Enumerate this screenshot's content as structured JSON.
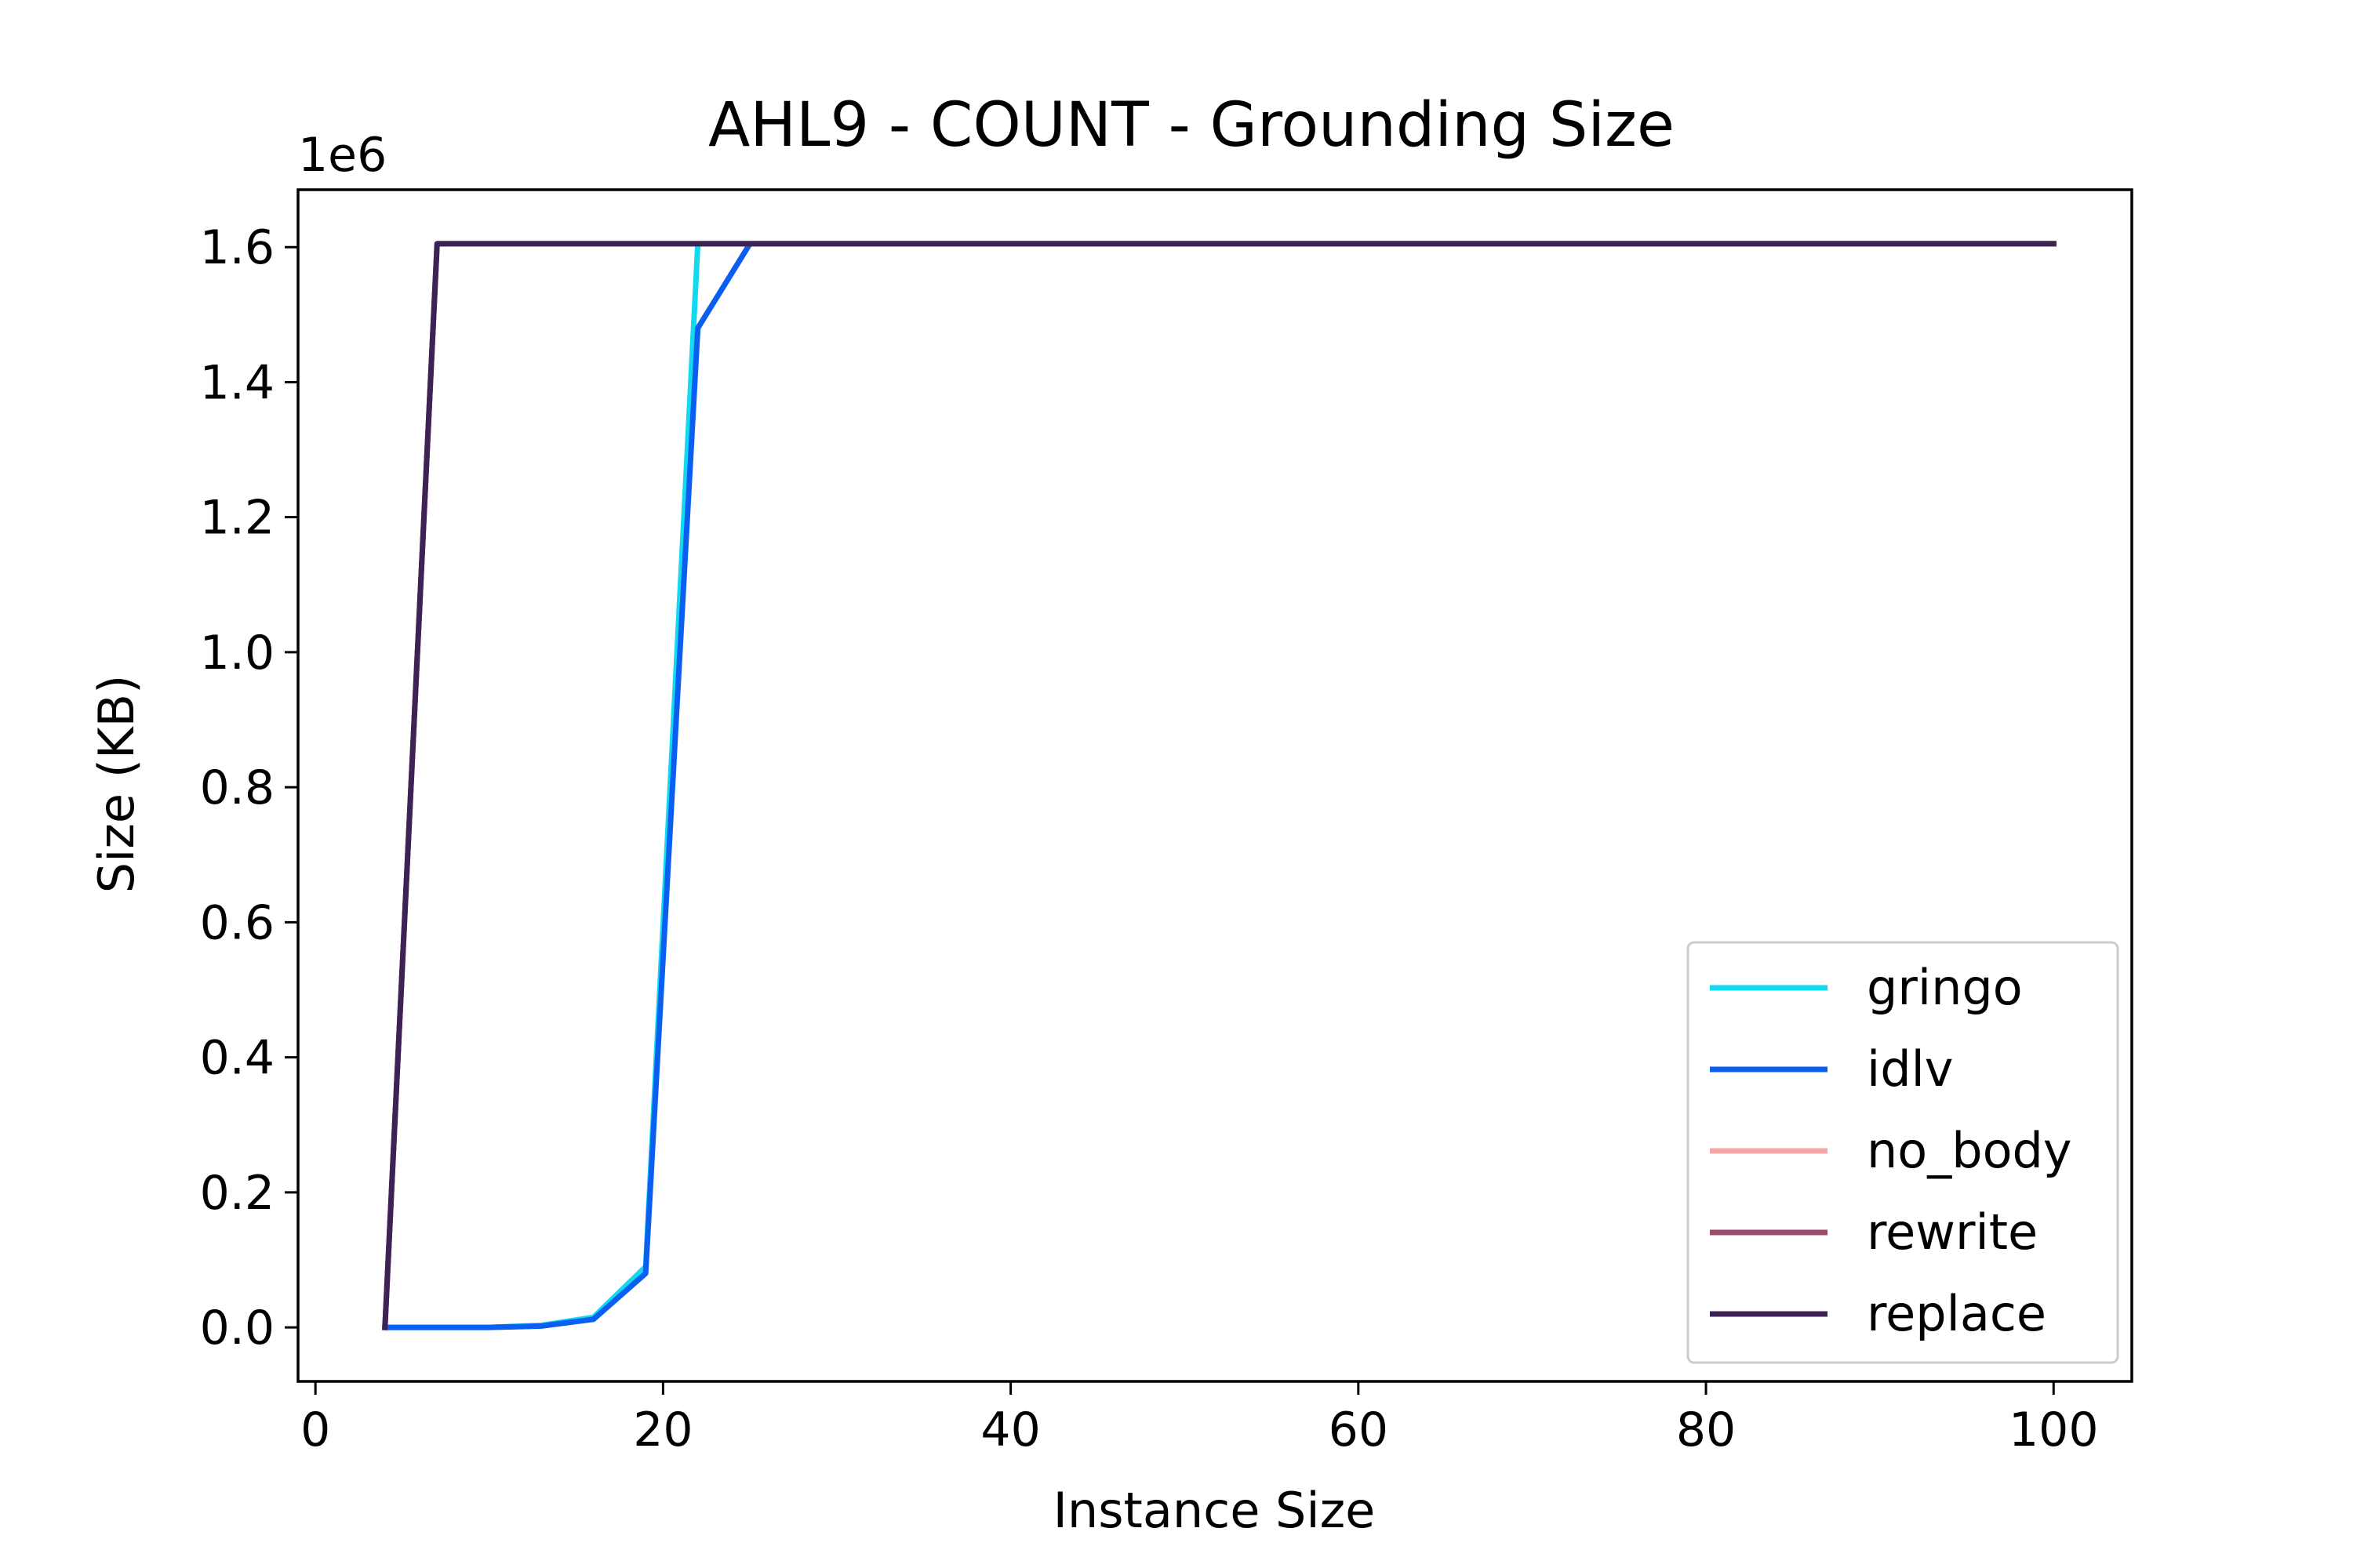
{
  "chart_data": {
    "type": "line",
    "title": "AHL9 - COUNT - Grounding Size",
    "xlabel": "Instance Size",
    "ylabel": "Size (KB)",
    "y_multiplier_label": "1e6",
    "xlim": [
      -1,
      104.5
    ],
    "ylim": [
      -80000,
      1685000
    ],
    "xticks": [
      0,
      20,
      40,
      60,
      80,
      100
    ],
    "xtick_labels": [
      "0",
      "20",
      "40",
      "60",
      "80",
      "100"
    ],
    "yticks": [
      0,
      200000,
      400000,
      600000,
      800000,
      1000000,
      1200000,
      1400000,
      1600000
    ],
    "ytick_labels": [
      "0.0",
      "0.2",
      "0.4",
      "0.6",
      "0.8",
      "1.0",
      "1.2",
      "1.4",
      "1.6"
    ],
    "grid": false,
    "legend_position": "lower-right",
    "series": [
      {
        "name": "gringo",
        "color": "#12d8f0",
        "x": [
          4,
          7,
          10,
          13,
          16,
          19,
          22,
          25,
          28,
          100
        ],
        "y": [
          0,
          0,
          0,
          3000,
          15000,
          90000,
          1605000,
          1605000,
          1605000,
          1605000
        ]
      },
      {
        "name": "idlv",
        "color": "#0a5ff0",
        "x": [
          4,
          7,
          10,
          13,
          16,
          19,
          22,
          25,
          28,
          100
        ],
        "y": [
          0,
          0,
          0,
          2000,
          12000,
          80000,
          1480000,
          1605000,
          1605000,
          1605000
        ]
      },
      {
        "name": "no_body",
        "color": "#f4a6a6",
        "x": [
          4,
          7,
          10,
          100
        ],
        "y": [
          0,
          1605000,
          1605000,
          1605000
        ]
      },
      {
        "name": "rewrite",
        "color": "#9b4a6b",
        "x": [
          4,
          7,
          10,
          100
        ],
        "y": [
          0,
          1605000,
          1605000,
          1605000
        ]
      },
      {
        "name": "replace",
        "color": "#3d2256",
        "x": [
          4,
          7,
          10,
          100
        ],
        "y": [
          0,
          1605000,
          1605000,
          1605000
        ]
      }
    ]
  }
}
